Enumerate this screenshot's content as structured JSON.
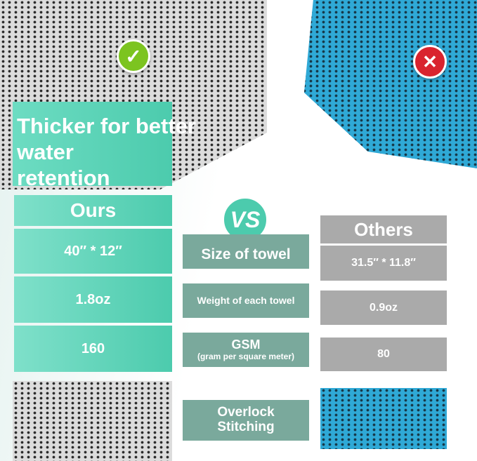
{
  "headline": {
    "line1": "Thicker for better",
    "line2": "water retention"
  },
  "vs_label": "VS",
  "ours": {
    "header": "Ours",
    "values": [
      "40″ * 12″",
      "1.8oz",
      "160"
    ]
  },
  "criteria": [
    {
      "label": "Size of towel",
      "sub": ""
    },
    {
      "label": "Weight of each towel",
      "sub": ""
    },
    {
      "label": "GSM",
      "sub": "(gram per square meter)"
    },
    {
      "label": "Overlock",
      "sub": "Stitching"
    }
  ],
  "others": {
    "header": "Others",
    "values": [
      "31.5″ * 11.8″",
      "0.9oz",
      "80"
    ]
  },
  "icons": {
    "ours_badge": "check-icon",
    "others_badge": "x-icon"
  },
  "colors": {
    "ours": "#4ccbad",
    "criteria": "#7aa99c",
    "others": "#aaaaaa",
    "check": "#7cc420",
    "x": "#d9232e"
  }
}
